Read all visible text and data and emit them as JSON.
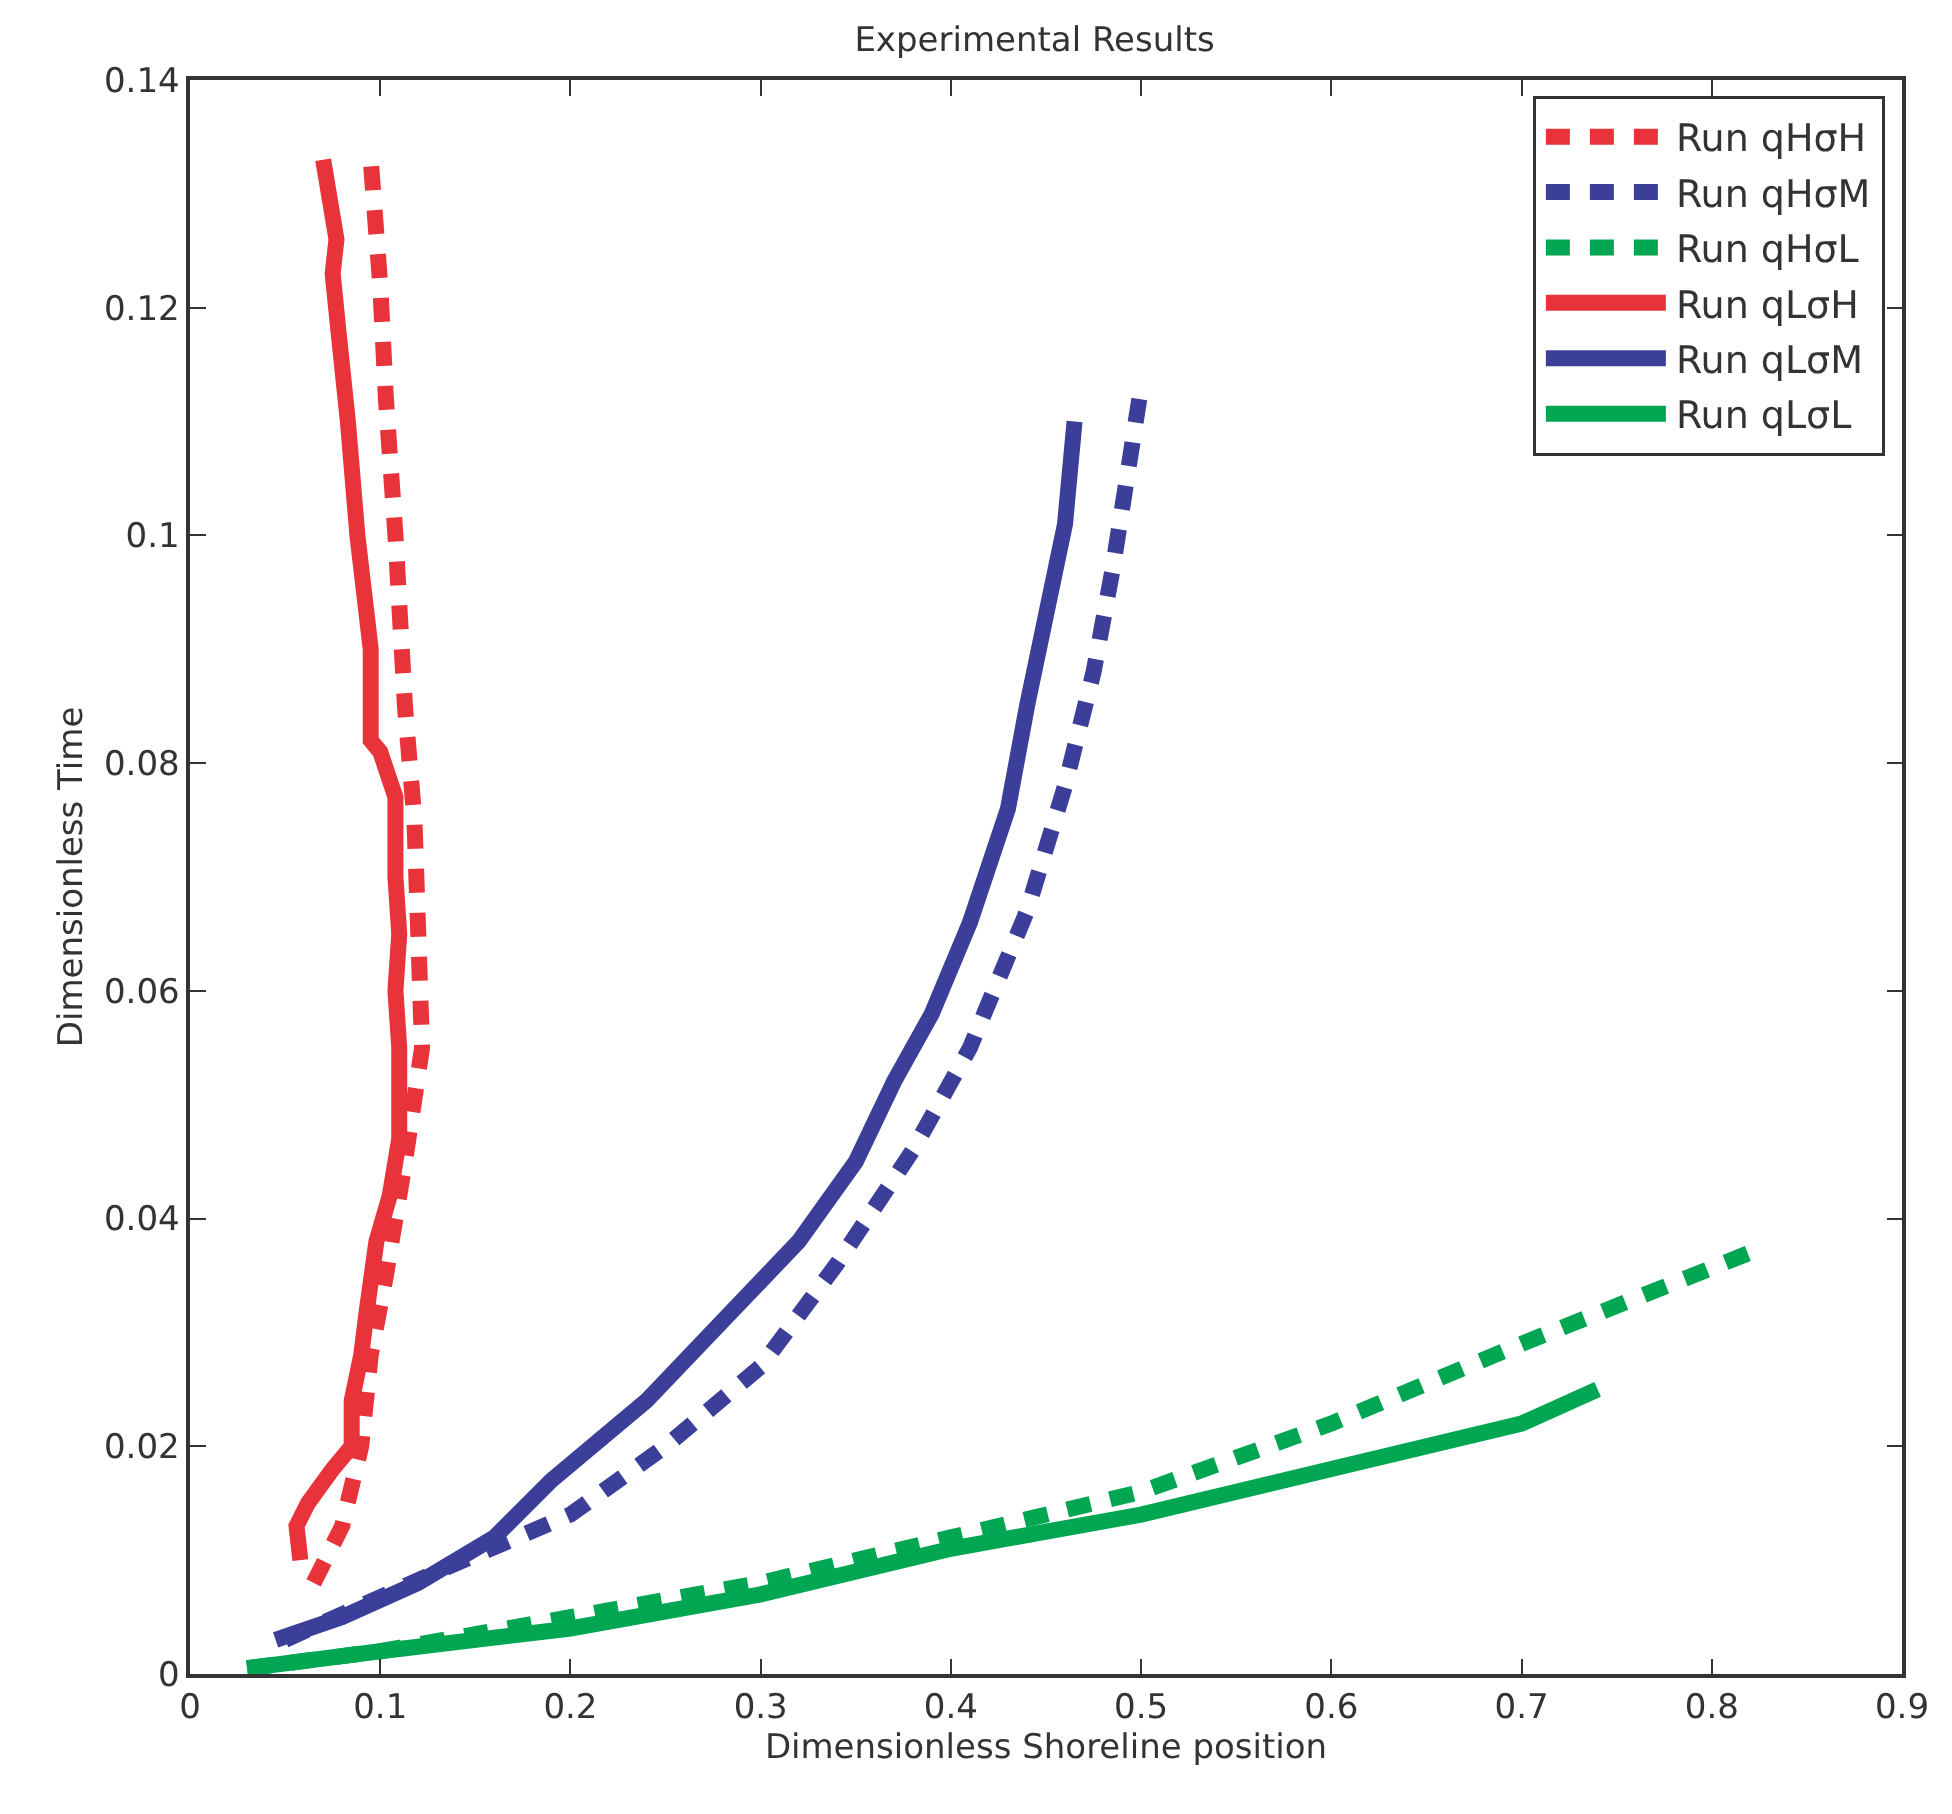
{
  "chart_data": {
    "type": "line",
    "title": "Experimental Results",
    "xlabel": "Dimensionless Shoreline position",
    "ylabel": "Dimensionless Time",
    "xlim": [
      0,
      0.9
    ],
    "xticks": [
      0,
      0.1,
      0.2,
      0.3,
      0.4,
      0.5,
      0.6,
      0.7,
      0.8,
      0.9
    ],
    "ylim": [
      0,
      0.14
    ],
    "yticks": [
      0,
      0.02,
      0.04,
      0.06,
      0.08,
      0.1,
      0.12,
      0.14
    ],
    "legend": "top right",
    "marker": "none",
    "series": [
      {
        "name": "Run qHσH",
        "color": "#e8333a",
        "line_style": "dashed",
        "x": [
          0.065,
          0.08,
          0.09,
          0.095,
          0.103,
          0.113,
          0.122,
          0.12,
          0.118,
          0.113,
          0.108,
          0.103,
          0.1,
          0.095
        ],
        "values": [
          0.008,
          0.013,
          0.02,
          0.028,
          0.035,
          0.045,
          0.055,
          0.065,
          0.075,
          0.085,
          0.1,
          0.112,
          0.122,
          0.133
        ]
      },
      {
        "name": "Run qHσM",
        "color": "#3c3f99",
        "line_style": "dashed",
        "x": [
          0.05,
          0.13,
          0.2,
          0.25,
          0.3,
          0.34,
          0.38,
          0.41,
          0.44,
          0.46,
          0.475,
          0.485,
          0.5
        ],
        "values": [
          0.003,
          0.009,
          0.014,
          0.02,
          0.027,
          0.036,
          0.046,
          0.055,
          0.067,
          0.078,
          0.088,
          0.097,
          0.113
        ]
      },
      {
        "name": "Run qHσL",
        "color": "#00a651",
        "line_style": "dashed",
        "x": [
          0.03,
          0.1,
          0.2,
          0.3,
          0.4,
          0.5,
          0.6,
          0.7,
          0.82
        ],
        "values": [
          0.0005,
          0.002,
          0.005,
          0.008,
          0.012,
          0.016,
          0.022,
          0.029,
          0.037
        ]
      },
      {
        "name": "Run qLσH",
        "color": "#e8333a",
        "line_style": "solid",
        "x": [
          0.058,
          0.056,
          0.062,
          0.075,
          0.085,
          0.085,
          0.09,
          0.093,
          0.098,
          0.105,
          0.11,
          0.11,
          0.108,
          0.11,
          0.108,
          0.108,
          0.1,
          0.095,
          0.095,
          0.088,
          0.083,
          0.078,
          0.075,
          0.077,
          0.07
        ],
        "values": [
          0.01,
          0.013,
          0.015,
          0.018,
          0.02,
          0.024,
          0.028,
          0.032,
          0.038,
          0.042,
          0.047,
          0.055,
          0.06,
          0.065,
          0.07,
          0.077,
          0.081,
          0.082,
          0.09,
          0.1,
          0.11,
          0.118,
          0.123,
          0.126,
          0.133
        ]
      },
      {
        "name": "Run qLσM",
        "color": "#3c3f99",
        "line_style": "solid",
        "x": [
          0.045,
          0.08,
          0.12,
          0.16,
          0.19,
          0.24,
          0.28,
          0.32,
          0.35,
          0.37,
          0.39,
          0.41,
          0.43,
          0.44,
          0.45,
          0.46,
          0.465
        ],
        "values": [
          0.003,
          0.005,
          0.008,
          0.012,
          0.017,
          0.024,
          0.031,
          0.038,
          0.045,
          0.052,
          0.058,
          0.066,
          0.076,
          0.085,
          0.093,
          0.101,
          0.11
        ]
      },
      {
        "name": "Run qLσL",
        "color": "#00a651",
        "line_style": "solid",
        "x": [
          0.03,
          0.1,
          0.2,
          0.3,
          0.4,
          0.5,
          0.6,
          0.7,
          0.74
        ],
        "values": [
          0.0005,
          0.002,
          0.004,
          0.007,
          0.011,
          0.014,
          0.018,
          0.022,
          0.025
        ]
      }
    ]
  }
}
